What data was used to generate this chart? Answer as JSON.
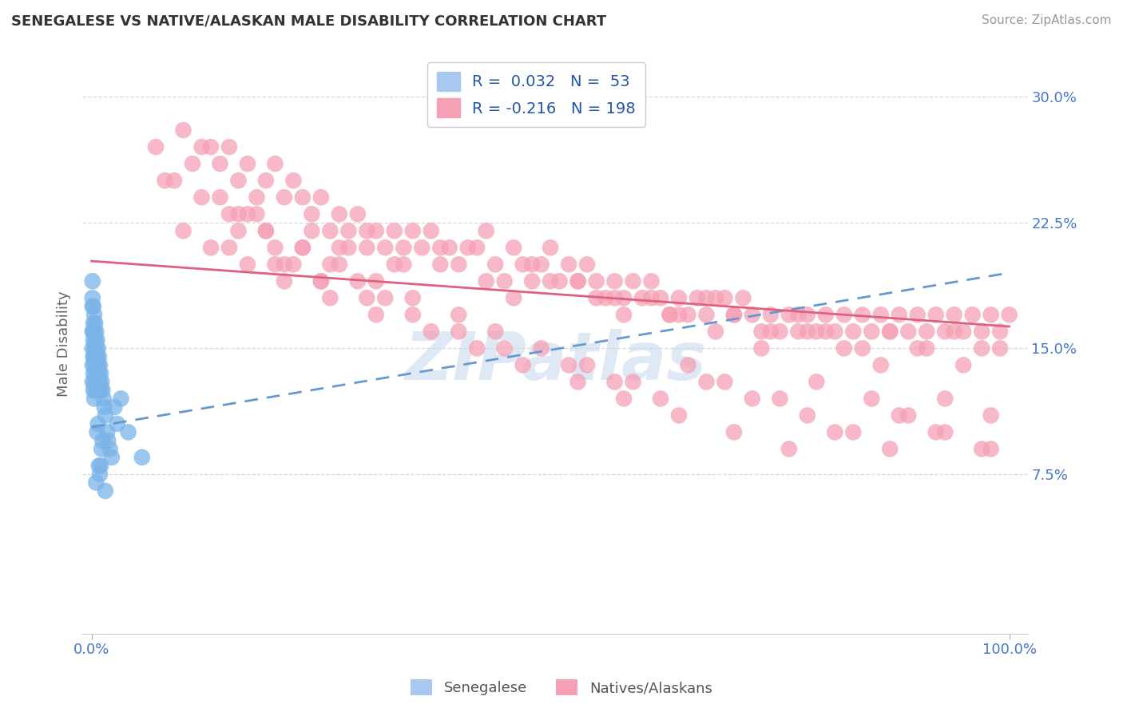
{
  "title": "SENEGALESE VS NATIVE/ALASKAN MALE DISABILITY CORRELATION CHART",
  "source": "Source: ZipAtlas.com",
  "ylabel": "Male Disability",
  "xlim": [
    -0.01,
    1.02
  ],
  "ylim": [
    -0.02,
    0.325
  ],
  "yticks": [
    0.075,
    0.15,
    0.225,
    0.3
  ],
  "ytick_labels": [
    "7.5%",
    "15.0%",
    "22.5%",
    "30.0%"
  ],
  "xtick_labels": [
    "0.0%",
    "100.0%"
  ],
  "senegalese_color": "#7ab3e8",
  "natives_color": "#f5a0b5",
  "senegalese_line_color": "#6699cc",
  "natives_line_color": "#e06080",
  "background_color": "#ffffff",
  "grid_color": "#d8d8d8",
  "tick_color": "#4477cc",
  "title_color": "#333333",
  "source_color": "#999999",
  "R_senegalese": 0.032,
  "N_senegalese": 53,
  "R_natives": -0.216,
  "N_natives": 198,
  "sen_line_start_y": 0.103,
  "sen_line_end_y": 0.195,
  "nat_line_start_y": 0.202,
  "nat_line_end_y": 0.163,
  "senegalese_x": [
    0.001,
    0.001,
    0.001,
    0.001,
    0.001,
    0.002,
    0.002,
    0.002,
    0.002,
    0.002,
    0.002,
    0.003,
    0.003,
    0.003,
    0.003,
    0.003,
    0.003,
    0.004,
    0.004,
    0.004,
    0.004,
    0.004,
    0.005,
    0.005,
    0.005,
    0.005,
    0.006,
    0.006,
    0.006,
    0.007,
    0.007,
    0.007,
    0.008,
    0.008,
    0.008,
    0.009,
    0.009,
    0.01,
    0.01,
    0.011,
    0.012,
    0.013,
    0.014,
    0.015,
    0.017,
    0.018,
    0.02,
    0.022,
    0.025,
    0.028,
    0.032,
    0.04,
    0.055
  ],
  "senegalese_y": [
    0.18,
    0.16,
    0.15,
    0.14,
    0.13,
    0.175,
    0.165,
    0.155,
    0.145,
    0.135,
    0.125,
    0.17,
    0.16,
    0.15,
    0.14,
    0.13,
    0.12,
    0.165,
    0.155,
    0.145,
    0.135,
    0.125,
    0.16,
    0.15,
    0.14,
    0.13,
    0.155,
    0.145,
    0.135,
    0.15,
    0.14,
    0.13,
    0.145,
    0.135,
    0.125,
    0.14,
    0.13,
    0.135,
    0.125,
    0.13,
    0.125,
    0.12,
    0.115,
    0.11,
    0.1,
    0.095,
    0.09,
    0.085,
    0.115,
    0.105,
    0.12,
    0.1,
    0.085
  ],
  "senegalese_y_extra": [
    0.19,
    0.175,
    0.16,
    0.145,
    0.07,
    0.1,
    0.105,
    0.08,
    0.075,
    0.08,
    0.09,
    0.095,
    0.065
  ],
  "senegalese_x_extra": [
    0.001,
    0.001,
    0.002,
    0.002,
    0.005,
    0.006,
    0.007,
    0.008,
    0.009,
    0.01,
    0.011,
    0.012,
    0.015
  ],
  "natives_x": [
    0.07,
    0.1,
    0.12,
    0.14,
    0.15,
    0.16,
    0.17,
    0.18,
    0.19,
    0.2,
    0.21,
    0.22,
    0.23,
    0.24,
    0.25,
    0.26,
    0.27,
    0.28,
    0.29,
    0.3,
    0.31,
    0.32,
    0.33,
    0.35,
    0.36,
    0.37,
    0.38,
    0.39,
    0.4,
    0.42,
    0.43,
    0.44,
    0.45,
    0.46,
    0.47,
    0.48,
    0.49,
    0.5,
    0.51,
    0.52,
    0.53,
    0.54,
    0.55,
    0.56,
    0.57,
    0.58,
    0.59,
    0.6,
    0.61,
    0.62,
    0.63,
    0.64,
    0.65,
    0.66,
    0.67,
    0.68,
    0.7,
    0.71,
    0.72,
    0.73,
    0.74,
    0.75,
    0.76,
    0.77,
    0.78,
    0.79,
    0.8,
    0.81,
    0.82,
    0.83,
    0.84,
    0.85,
    0.86,
    0.87,
    0.88,
    0.89,
    0.9,
    0.91,
    0.92,
    0.93,
    0.94,
    0.95,
    0.96,
    0.97,
    0.98,
    0.99,
    1.0,
    0.08,
    0.11,
    0.13,
    0.34,
    0.41,
    0.69,
    0.15,
    0.16,
    0.22,
    0.23,
    0.25,
    0.26,
    0.28,
    0.29,
    0.32,
    0.3,
    0.34,
    0.17,
    0.19,
    0.2,
    0.21,
    0.24,
    0.27,
    0.43,
    0.46,
    0.5,
    0.55,
    0.58,
    0.61,
    0.64,
    0.67,
    0.7,
    0.74,
    0.77,
    0.8,
    0.84,
    0.87,
    0.91,
    0.94,
    0.97,
    0.14,
    0.18,
    0.33,
    0.38,
    0.48,
    0.53,
    0.57,
    0.63,
    0.68,
    0.73,
    0.78,
    0.82,
    0.86,
    0.9,
    0.95,
    0.99,
    0.09,
    0.12,
    0.16,
    0.19,
    0.23,
    0.27,
    0.31,
    0.35,
    0.4,
    0.44,
    0.49,
    0.54,
    0.59,
    0.65,
    0.69,
    0.75,
    0.79,
    0.85,
    0.89,
    0.93,
    0.98,
    0.1,
    0.15,
    0.2,
    0.25,
    0.3,
    0.35,
    0.4,
    0.45,
    0.52,
    0.57,
    0.62,
    0.67,
    0.72,
    0.78,
    0.83,
    0.88,
    0.93,
    0.98,
    0.13,
    0.17,
    0.21,
    0.26,
    0.31,
    0.37,
    0.42,
    0.47,
    0.53,
    0.58,
    0.64,
    0.7,
    0.76,
    0.81,
    0.87,
    0.92,
    0.97
  ],
  "natives_y": [
    0.27,
    0.28,
    0.27,
    0.26,
    0.27,
    0.25,
    0.26,
    0.24,
    0.25,
    0.26,
    0.24,
    0.25,
    0.24,
    0.23,
    0.24,
    0.22,
    0.23,
    0.22,
    0.23,
    0.21,
    0.22,
    0.21,
    0.2,
    0.22,
    0.21,
    0.22,
    0.2,
    0.21,
    0.2,
    0.21,
    0.22,
    0.2,
    0.19,
    0.21,
    0.2,
    0.19,
    0.2,
    0.21,
    0.19,
    0.2,
    0.19,
    0.2,
    0.19,
    0.18,
    0.19,
    0.18,
    0.19,
    0.18,
    0.19,
    0.18,
    0.17,
    0.18,
    0.17,
    0.18,
    0.17,
    0.18,
    0.17,
    0.18,
    0.17,
    0.16,
    0.17,
    0.16,
    0.17,
    0.16,
    0.17,
    0.16,
    0.17,
    0.16,
    0.17,
    0.16,
    0.17,
    0.16,
    0.17,
    0.16,
    0.17,
    0.16,
    0.17,
    0.16,
    0.17,
    0.16,
    0.17,
    0.16,
    0.17,
    0.16,
    0.17,
    0.16,
    0.17,
    0.25,
    0.26,
    0.27,
    0.2,
    0.21,
    0.18,
    0.23,
    0.22,
    0.2,
    0.21,
    0.19,
    0.2,
    0.21,
    0.19,
    0.18,
    0.22,
    0.21,
    0.23,
    0.22,
    0.21,
    0.2,
    0.22,
    0.21,
    0.19,
    0.18,
    0.19,
    0.18,
    0.17,
    0.18,
    0.17,
    0.18,
    0.17,
    0.16,
    0.17,
    0.16,
    0.15,
    0.16,
    0.15,
    0.16,
    0.15,
    0.24,
    0.23,
    0.22,
    0.21,
    0.2,
    0.19,
    0.18,
    0.17,
    0.16,
    0.15,
    0.16,
    0.15,
    0.14,
    0.15,
    0.14,
    0.15,
    0.25,
    0.24,
    0.23,
    0.22,
    0.21,
    0.2,
    0.19,
    0.18,
    0.17,
    0.16,
    0.15,
    0.14,
    0.13,
    0.14,
    0.13,
    0.12,
    0.13,
    0.12,
    0.11,
    0.12,
    0.11,
    0.22,
    0.21,
    0.2,
    0.19,
    0.18,
    0.17,
    0.16,
    0.15,
    0.14,
    0.13,
    0.12,
    0.13,
    0.12,
    0.11,
    0.1,
    0.11,
    0.1,
    0.09,
    0.21,
    0.2,
    0.19,
    0.18,
    0.17,
    0.16,
    0.15,
    0.14,
    0.13,
    0.12,
    0.11,
    0.1,
    0.09,
    0.1,
    0.09,
    0.1,
    0.09
  ]
}
